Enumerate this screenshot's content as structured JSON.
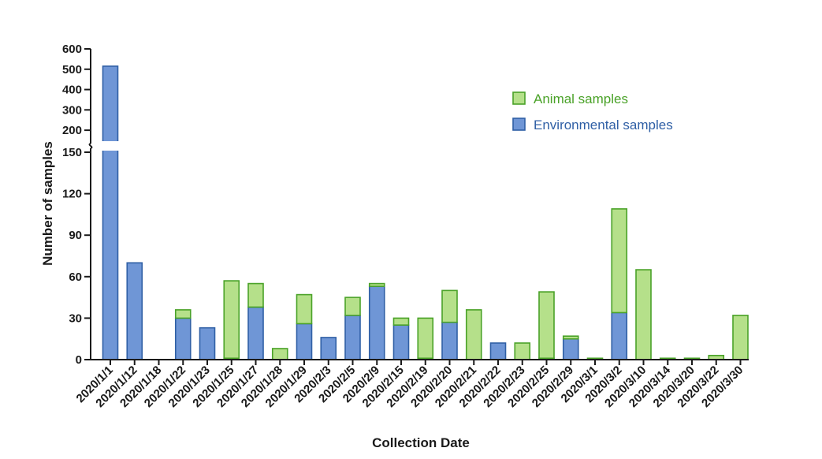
{
  "chart_data": {
    "type": "bar",
    "stacked": true,
    "y_axis_break": true,
    "xlabel": "Collection Date",
    "ylabel": "Number of samples",
    "ylim_lower": [
      0,
      150
    ],
    "ylim_upper": [
      150,
      600
    ],
    "yticks_lower": [
      "0",
      "30",
      "60",
      "90",
      "120",
      "150"
    ],
    "yticks_upper": [
      "200",
      "300",
      "400",
      "500",
      "600"
    ],
    "categories": [
      "2020/1/1",
      "2020/1/12",
      "2020/1/18",
      "2020/1/22",
      "2020/1/23",
      "2020/1/25",
      "2020/1/27",
      "2020/1/28",
      "2020/1/29",
      "2020/2/3",
      "2020/2/5",
      "2020/2/9",
      "2020/2/15",
      "2020/2/19",
      "2020/2/20",
      "2020/2/21",
      "2020/2/22",
      "2020/2/23",
      "2020/2/25",
      "2020/2/29",
      "2020/3/1",
      "2020/3/2",
      "2020/3/10",
      "2020/3/14",
      "2020/3/20",
      "2020/3/22",
      "2020/3/30"
    ],
    "series": [
      {
        "name": "Environmental samples",
        "color": "#6f96d6",
        "stroke": "#2f5fa5",
        "values": [
          515,
          70,
          0,
          30,
          23,
          1,
          38,
          0,
          26,
          16,
          32,
          53,
          25,
          1,
          27,
          0,
          12,
          0,
          1,
          15,
          0,
          34,
          0,
          0,
          0,
          0,
          0
        ]
      },
      {
        "name": "Animal samples",
        "color": "#b5e08a",
        "stroke": "#4aa228",
        "values": [
          0,
          0,
          0,
          6,
          0,
          56,
          17,
          8,
          21,
          0,
          13,
          2,
          5,
          29,
          23,
          36,
          0,
          12,
          48,
          2,
          1,
          75,
          65,
          1,
          1,
          3,
          32
        ]
      }
    ],
    "legend": {
      "position": "top-right",
      "order": [
        "Animal samples",
        "Environmental samples"
      ]
    }
  }
}
